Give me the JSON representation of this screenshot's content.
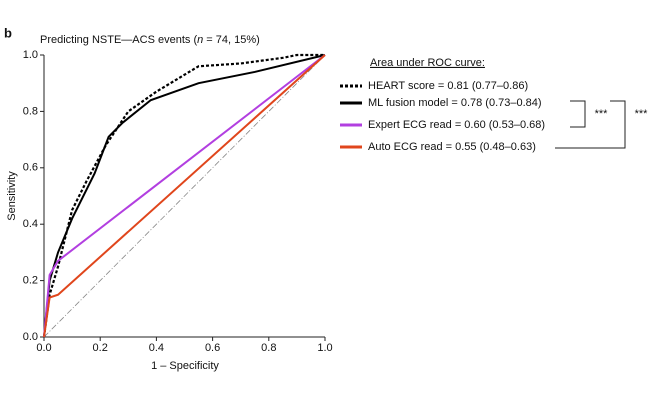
{
  "chart_data": {
    "type": "line",
    "panel_label": "b",
    "title": [
      "Predicting NSTE—ACS events (",
      "n",
      " = 74, 15%)"
    ],
    "xlabel": "1 – Specificity",
    "ylabel": "Sensitivity",
    "legend_title": "Area under ROC curve:",
    "xlim": [
      0,
      1
    ],
    "ylim": [
      0,
      1
    ],
    "xticks": [
      {
        "value": 0,
        "label": "0.0"
      },
      {
        "value": 0.2,
        "label": "0.2"
      },
      {
        "value": 0.4,
        "label": "0.4"
      },
      {
        "value": 0.6,
        "label": "0.6"
      },
      {
        "value": 0.8,
        "label": "0.8"
      },
      {
        "value": 1,
        "label": "1.0"
      }
    ],
    "yticks": [
      {
        "value": 0,
        "label": "0.0"
      },
      {
        "value": 0.2,
        "label": "0.2"
      },
      {
        "value": 0.4,
        "label": "0.4"
      },
      {
        "value": 0.6,
        "label": "0.6"
      },
      {
        "value": 0.8,
        "label": "0.8"
      },
      {
        "value": 1,
        "label": "1.0"
      }
    ],
    "grid": false,
    "series": [
      {
        "name": "HEART score = 0.81 (0.77–0.86)",
        "color": "#000000",
        "dash": "dotted",
        "x": [
          0,
          0.02,
          0.05,
          0.1,
          0.15,
          0.22,
          0.3,
          0.4,
          0.5,
          0.55,
          0.7,
          0.85,
          0.9,
          1
        ],
        "values": [
          0,
          0.15,
          0.25,
          0.45,
          0.55,
          0.68,
          0.8,
          0.87,
          0.93,
          0.96,
          0.97,
          0.99,
          1,
          1
        ]
      },
      {
        "name": "ML fusion model = 0.78 (0.73–0.84)",
        "color": "#000000",
        "dash": "solid",
        "x": [
          0,
          0.02,
          0.05,
          0.1,
          0.18,
          0.23,
          0.28,
          0.38,
          0.55,
          0.75,
          1
        ],
        "values": [
          0,
          0.2,
          0.3,
          0.42,
          0.58,
          0.71,
          0.76,
          0.84,
          0.9,
          0.94,
          1
        ]
      },
      {
        "name": "Expert ECG read = 0.60 (0.53–0.68)",
        "color": "#b23fe0",
        "dash": "solid",
        "x": [
          0,
          0.02,
          0.05,
          1
        ],
        "values": [
          0,
          0.22,
          0.27,
          1
        ]
      },
      {
        "name": "Auto ECG read = 0.55 (0.48–0.63)",
        "color": "#e0461c",
        "dash": "solid",
        "x": [
          0,
          0.02,
          0.05,
          1
        ],
        "values": [
          0,
          0.14,
          0.15,
          1
        ]
      }
    ],
    "significance": [
      "***",
      "***"
    ]
  }
}
